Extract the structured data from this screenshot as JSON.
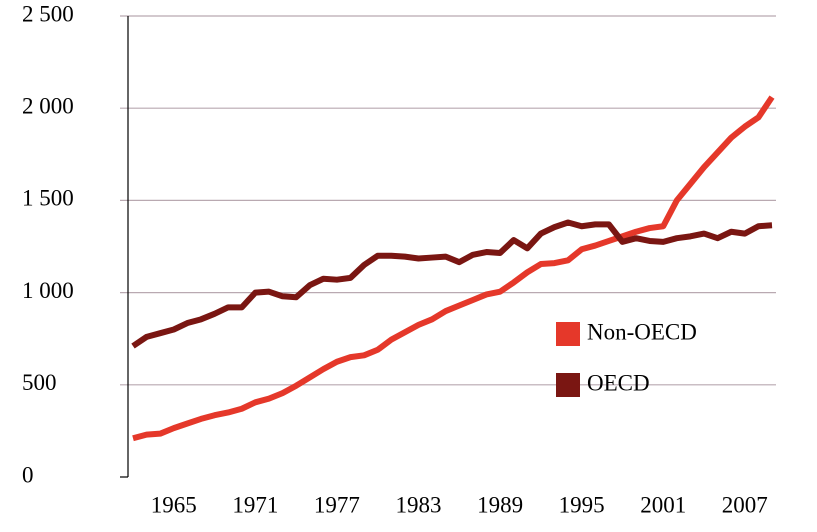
{
  "chart_data": {
    "type": "line",
    "x": [
      1962,
      1963,
      1964,
      1965,
      1966,
      1967,
      1968,
      1969,
      1970,
      1971,
      1972,
      1973,
      1974,
      1975,
      1976,
      1977,
      1978,
      1979,
      1980,
      1981,
      1982,
      1983,
      1984,
      1985,
      1986,
      1987,
      1988,
      1989,
      1990,
      1991,
      1992,
      1993,
      1994,
      1995,
      1996,
      1997,
      1998,
      1999,
      2000,
      2001,
      2002,
      2003,
      2004,
      2005,
      2006,
      2007,
      2008,
      2009
    ],
    "series": [
      {
        "name": "Non-OECD",
        "color": "#e5382a",
        "values": [
          210,
          230,
          235,
          265,
          290,
          315,
          335,
          350,
          370,
          405,
          425,
          455,
          495,
          540,
          585,
          625,
          650,
          660,
          690,
          745,
          785,
          825,
          855,
          900,
          930,
          960,
          990,
          1005,
          1055,
          1110,
          1155,
          1160,
          1175,
          1235,
          1255,
          1280,
          1305,
          1330,
          1350,
          1360,
          1500,
          1590,
          1680,
          1760,
          1840,
          1900,
          1950,
          2060
        ]
      },
      {
        "name": "OECD",
        "color": "#7a1612",
        "values": [
          710,
          760,
          780,
          800,
          835,
          855,
          885,
          920,
          920,
          1000,
          1005,
          980,
          975,
          1040,
          1075,
          1070,
          1080,
          1150,
          1200,
          1200,
          1195,
          1185,
          1190,
          1195,
          1165,
          1205,
          1220,
          1215,
          1285,
          1240,
          1320,
          1355,
          1380,
          1360,
          1370,
          1370,
          1275,
          1295,
          1280,
          1275,
          1295,
          1305,
          1320,
          1295,
          1330,
          1320,
          1360,
          1365
        ]
      }
    ],
    "xlim": [
      1962,
      2009
    ],
    "xticks": [
      1965,
      1971,
      1977,
      1983,
      1989,
      1995,
      2001,
      2007
    ],
    "ylim": [
      0,
      2500
    ],
    "yticks": [
      0,
      500,
      {
        "value": 1000,
        "label": "1 000"
      },
      {
        "value": 1500,
        "label": "1 500"
      },
      {
        "value": 2000,
        "label": "2 000"
      },
      {
        "value": 2500,
        "label": "2 500"
      }
    ],
    "grid": true
  }
}
